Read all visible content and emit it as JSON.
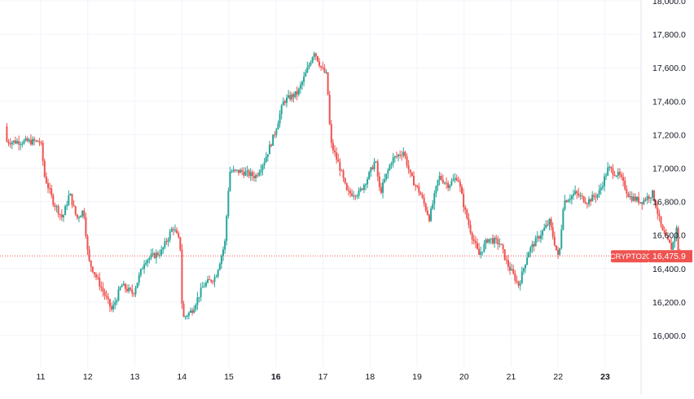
{
  "chart_data": {
    "type": "candlestick",
    "series_label": "CRYPTO20",
    "last_price": 16475.9,
    "last_price_label": "16,475.9",
    "y_axis": {
      "min": 15850,
      "max": 18000,
      "ticks": [
        16000,
        16200,
        16400,
        16600,
        16800,
        17000,
        17200,
        17400,
        17600,
        17800,
        18000
      ],
      "tick_labels": [
        "16,000.0",
        "16,200.0",
        "16,400.0",
        "16,600.0",
        "16,800.0",
        "17,000.0",
        "17,200.0",
        "17,400.0",
        "17,600.0",
        "17,800.0",
        "18,000.0"
      ]
    },
    "x_axis": {
      "ticks": [
        "11",
        "12",
        "13",
        "14",
        "15",
        "16",
        "17",
        "18",
        "19",
        "20",
        "21",
        "22",
        "23"
      ],
      "bold_ticks": [
        "16",
        "23"
      ]
    },
    "grid": true,
    "colors": {
      "up": "#26a69a",
      "down": "#ef5350",
      "grid": "#f0f3fa",
      "axis_text": "#131722"
    },
    "price_path_points": [
      {
        "x": 0,
        "y": 17250
      },
      {
        "x": 0.12,
        "y": 16950
      },
      {
        "x": 0.3,
        "y": 16800
      },
      {
        "x": 0.5,
        "y": 16700
      },
      {
        "x": 0.65,
        "y": 16850
      },
      {
        "x": 0.8,
        "y": 16700
      },
      {
        "x": 0.95,
        "y": 16750
      },
      {
        "x": 1.05,
        "y": 16450
      },
      {
        "x": 1.3,
        "y": 16300
      },
      {
        "x": 1.55,
        "y": 16150
      },
      {
        "x": 1.75,
        "y": 16300
      },
      {
        "x": 2.0,
        "y": 16250
      },
      {
        "x": 2.25,
        "y": 16450
      },
      {
        "x": 2.6,
        "y": 16500
      },
      {
        "x": 2.85,
        "y": 16650
      },
      {
        "x": 3.0,
        "y": 16550
      },
      {
        "x": 3.05,
        "y": 16100
      },
      {
        "x": 3.25,
        "y": 16150
      },
      {
        "x": 3.5,
        "y": 16300
      },
      {
        "x": 3.75,
        "y": 16350
      },
      {
        "x": 3.95,
        "y": 16550
      },
      {
        "x": 4.05,
        "y": 16980
      },
      {
        "x": 4.3,
        "y": 16980
      },
      {
        "x": 4.6,
        "y": 16950
      },
      {
        "x": 4.8,
        "y": 17050
      },
      {
        "x": 5.0,
        "y": 17200
      },
      {
        "x": 5.2,
        "y": 17400
      },
      {
        "x": 5.5,
        "y": 17450
      },
      {
        "x": 5.65,
        "y": 17550
      },
      {
        "x": 5.85,
        "y": 17700
      },
      {
        "x": 6.0,
        "y": 17600
      },
      {
        "x": 6.12,
        "y": 17550
      },
      {
        "x": 6.2,
        "y": 17150
      },
      {
        "x": 6.4,
        "y": 17000
      },
      {
        "x": 6.55,
        "y": 16850
      },
      {
        "x": 6.8,
        "y": 16850
      },
      {
        "x": 7.0,
        "y": 16950
      },
      {
        "x": 7.15,
        "y": 17050
      },
      {
        "x": 7.25,
        "y": 16850
      },
      {
        "x": 7.5,
        "y": 17050
      },
      {
        "x": 7.75,
        "y": 17100
      },
      {
        "x": 7.9,
        "y": 16950
      },
      {
        "x": 8.1,
        "y": 16850
      },
      {
        "x": 8.3,
        "y": 16700
      },
      {
        "x": 8.5,
        "y": 16950
      },
      {
        "x": 8.7,
        "y": 16900
      },
      {
        "x": 8.9,
        "y": 16950
      },
      {
        "x": 9.05,
        "y": 16750
      },
      {
        "x": 9.2,
        "y": 16600
      },
      {
        "x": 9.35,
        "y": 16480
      },
      {
        "x": 9.55,
        "y": 16580
      },
      {
        "x": 9.8,
        "y": 16550
      },
      {
        "x": 9.95,
        "y": 16430
      },
      {
        "x": 10.2,
        "y": 16300
      },
      {
        "x": 10.4,
        "y": 16500
      },
      {
        "x": 10.6,
        "y": 16580
      },
      {
        "x": 10.85,
        "y": 16680
      },
      {
        "x": 11.05,
        "y": 16450
      },
      {
        "x": 11.15,
        "y": 16800
      },
      {
        "x": 11.4,
        "y": 16850
      },
      {
        "x": 11.65,
        "y": 16800
      },
      {
        "x": 11.9,
        "y": 16850
      },
      {
        "x": 12.1,
        "y": 17000
      },
      {
        "x": 12.35,
        "y": 16950
      },
      {
        "x": 12.55,
        "y": 16830
      },
      {
        "x": 12.8,
        "y": 16800
      },
      {
        "x": 13.05,
        "y": 16850
      },
      {
        "x": 13.25,
        "y": 16620
      },
      {
        "x": 13.45,
        "y": 16520
      },
      {
        "x": 13.55,
        "y": 16640
      },
      {
        "x": 13.6,
        "y": 16476
      }
    ]
  }
}
